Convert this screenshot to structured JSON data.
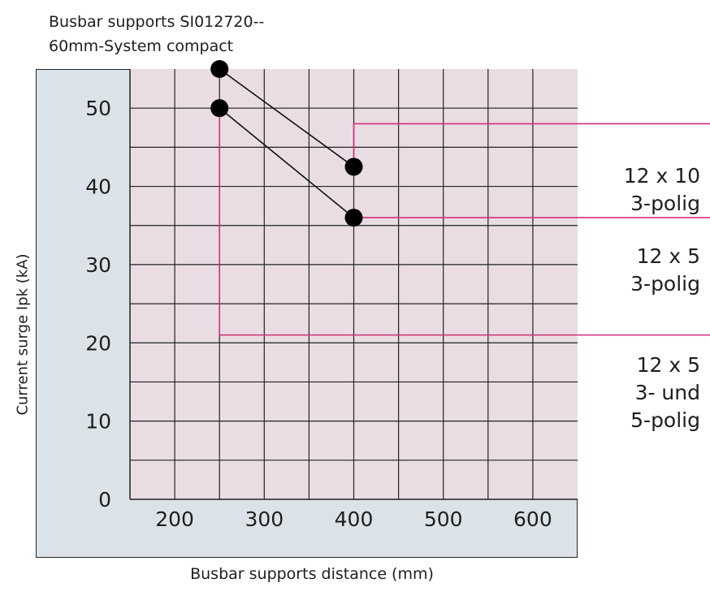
{
  "title_lines": [
    "Busbar supports SI012720--",
    "60mm-System compact"
  ],
  "chart_data": {
    "type": "scatter",
    "title": "Busbar supports SI012720-- 60mm-System compact",
    "xlabel": "Busbar supports distance (mm)",
    "ylabel": "Current surge Ipk (kA)",
    "xlim": [
      150,
      650
    ],
    "ylim": [
      0,
      55
    ],
    "x_ticks": [
      200,
      300,
      400,
      500,
      600
    ],
    "y_ticks": [
      0,
      10,
      20,
      30,
      40,
      50
    ],
    "grid": true,
    "series": [
      {
        "name": "12 x 10 3-polig",
        "points": [
          [
            250,
            55
          ],
          [
            400,
            42.5
          ]
        ]
      },
      {
        "name": "12 x 5 3-polig",
        "points": [
          [
            250,
            50
          ],
          [
            400,
            36
          ]
        ]
      },
      {
        "name": "12 x 5 3- und 5-polig",
        "points": [
          [
            250,
            21
          ]
        ]
      }
    ],
    "legend_labels": [
      [
        "12 x 10",
        "3-polig"
      ],
      [
        "12 x 5",
        "3-polig"
      ],
      [
        "12 x 5",
        "3- und",
        "5-polig"
      ]
    ],
    "colors": {
      "plot_bg": "#e9dde3",
      "outer_bg": "#dbe3e8",
      "grid": "#222222",
      "marker": "#000000",
      "guide": "#d0307a"
    }
  }
}
